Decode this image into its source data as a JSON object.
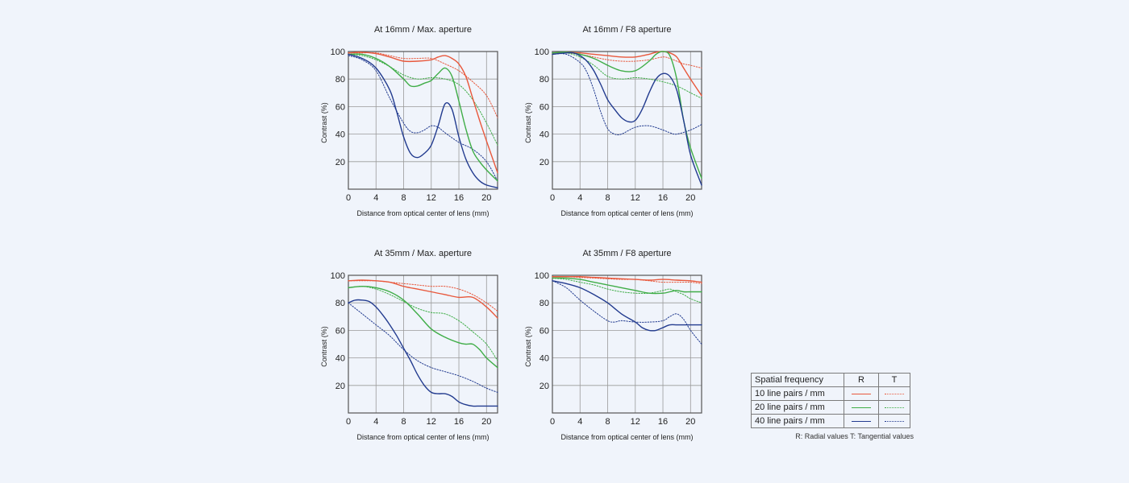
{
  "chart_data": [
    {
      "type": "line",
      "title": "At 16mm / Max. aperture",
      "xlabel": "Distance from optical center of lens (mm)",
      "ylabel": "Contrast (%)",
      "xlim": [
        0,
        21.6
      ],
      "ylim": [
        0,
        100
      ],
      "xticks": [
        "0",
        "4",
        "8",
        "12",
        "16",
        "20"
      ],
      "yticks": [
        "20",
        "40",
        "60",
        "80",
        "100"
      ],
      "grid": true,
      "series": [
        {
          "name": "10 line pairs / mm",
          "kind": "R",
          "x": [
            0,
            2,
            4,
            6,
            8,
            10,
            12,
            13,
            14,
            15,
            16,
            17,
            18,
            19,
            20,
            21.6
          ],
          "y": [
            99,
            99.5,
            98.5,
            96,
            93,
            93,
            94,
            96,
            97,
            95,
            91,
            82,
            66,
            50,
            35,
            12
          ]
        },
        {
          "name": "10 line pairs / mm",
          "kind": "T",
          "x": [
            0,
            2,
            4,
            6,
            8,
            10,
            12,
            14,
            16,
            18,
            20,
            21.6
          ],
          "y": [
            99,
            99,
            99,
            97,
            95,
            95,
            95,
            91,
            86,
            78,
            68,
            52
          ]
        },
        {
          "name": "20 line pairs / mm",
          "kind": "R",
          "x": [
            0,
            2,
            4,
            6,
            8,
            9,
            10,
            11,
            12,
            13,
            14,
            15,
            16,
            17,
            18,
            19,
            20,
            21.6
          ],
          "y": [
            98,
            98,
            95,
            89,
            80,
            75,
            75,
            77,
            79,
            84,
            88,
            82,
            64,
            44,
            28,
            20,
            14,
            6
          ]
        },
        {
          "name": "20 line pairs / mm",
          "kind": "T",
          "x": [
            0,
            2,
            4,
            6,
            8,
            10,
            12,
            14,
            16,
            18,
            20,
            21.6
          ],
          "y": [
            98,
            97,
            94,
            89,
            83,
            80,
            81,
            80,
            76,
            65,
            48,
            32
          ]
        },
        {
          "name": "40 line pairs / mm",
          "kind": "R",
          "x": [
            0,
            2,
            4,
            6,
            7,
            8,
            9,
            10,
            11,
            12,
            13,
            14,
            15,
            16,
            17,
            18,
            19,
            20,
            21.6
          ],
          "y": [
            98,
            95,
            88,
            72,
            56,
            38,
            26,
            23,
            26,
            32,
            46,
            62,
            58,
            38,
            22,
            12,
            6,
            3,
            1
          ]
        },
        {
          "name": "40 line pairs / mm",
          "kind": "T",
          "x": [
            0,
            2,
            4,
            6,
            8,
            9,
            10,
            11,
            12,
            13,
            14,
            16,
            18,
            20,
            21.6
          ],
          "y": [
            97,
            94,
            86,
            66,
            48,
            42,
            41,
            43,
            46,
            45,
            41,
            34,
            29,
            20,
            6
          ]
        }
      ]
    },
    {
      "type": "line",
      "title": "At 16mm / F8 aperture",
      "xlabel": "Distance from optical center of lens (mm)",
      "ylabel": "Contrast (%)",
      "xlim": [
        0,
        21.6
      ],
      "ylim": [
        0,
        100
      ],
      "xticks": [
        "0",
        "4",
        "8",
        "12",
        "16",
        "20"
      ],
      "yticks": [
        "20",
        "40",
        "60",
        "80",
        "100"
      ],
      "grid": true,
      "series": [
        {
          "name": "10 line pairs / mm",
          "kind": "R",
          "x": [
            0,
            2,
            4,
            6,
            8,
            10,
            12,
            14,
            15,
            16,
            17,
            18,
            19,
            20,
            21.6
          ],
          "y": [
            99,
            99.5,
            99,
            98,
            97,
            96,
            96,
            98,
            99.5,
            100,
            99,
            96,
            88,
            80,
            68
          ]
        },
        {
          "name": "10 line pairs / mm",
          "kind": "T",
          "x": [
            0,
            2,
            4,
            6,
            8,
            10,
            12,
            14,
            16,
            17,
            18,
            19,
            20,
            21.6
          ],
          "y": [
            99,
            99,
            98,
            96,
            94,
            93,
            93,
            94,
            96,
            95,
            93,
            91,
            90,
            88
          ]
        },
        {
          "name": "20 line pairs / mm",
          "kind": "R",
          "x": [
            0,
            2,
            4,
            6,
            8,
            10,
            12,
            14,
            15,
            16,
            17,
            18,
            19,
            20,
            21.6
          ],
          "y": [
            99,
            99.5,
            98,
            95,
            90,
            86,
            86,
            93,
            98,
            100,
            97,
            80,
            50,
            30,
            8
          ]
        },
        {
          "name": "20 line pairs / mm",
          "kind": "T",
          "x": [
            0,
            2,
            4,
            6,
            8,
            10,
            12,
            14,
            16,
            18,
            20,
            21.6
          ],
          "y": [
            99,
            99,
            96,
            90,
            82,
            80,
            81,
            80,
            78,
            75,
            70,
            66
          ]
        },
        {
          "name": "40 line pairs / mm",
          "kind": "R",
          "x": [
            0,
            2,
            3,
            4,
            5,
            6,
            7,
            8,
            9,
            10,
            11,
            12,
            13,
            14,
            15,
            16,
            17,
            18,
            19,
            20,
            21.6
          ],
          "y": [
            98,
            99,
            99,
            97,
            93,
            86,
            76,
            65,
            58,
            52,
            49,
            50,
            58,
            70,
            80,
            84,
            82,
            72,
            50,
            25,
            3
          ]
        },
        {
          "name": "40 line pairs / mm",
          "kind": "T",
          "x": [
            0,
            2,
            4,
            5,
            6,
            7,
            8,
            9,
            10,
            12,
            14,
            16,
            17,
            18,
            20,
            21.6
          ],
          "y": [
            98,
            98,
            92,
            85,
            72,
            56,
            44,
            40,
            40,
            45,
            46,
            43,
            41,
            40,
            43,
            47
          ]
        }
      ]
    },
    {
      "type": "line",
      "title": "At 35mm / Max. aperture",
      "xlabel": "Distance from optical center of lens (mm)",
      "ylabel": "Contrast (%)",
      "xlim": [
        0,
        21.6
      ],
      "ylim": [
        0,
        100
      ],
      "xticks": [
        "0",
        "4",
        "8",
        "12",
        "16",
        "20"
      ],
      "yticks": [
        "20",
        "40",
        "60",
        "80",
        "100"
      ],
      "grid": true,
      "series": [
        {
          "name": "10 line pairs / mm",
          "kind": "R",
          "x": [
            0,
            2,
            4,
            6,
            8,
            10,
            12,
            14,
            16,
            18,
            20,
            21.6
          ],
          "y": [
            96,
            96.5,
            96,
            95,
            92,
            90,
            88,
            86,
            84,
            84,
            77,
            69
          ]
        },
        {
          "name": "10 line pairs / mm",
          "kind": "T",
          "x": [
            0,
            2,
            4,
            6,
            8,
            10,
            12,
            14,
            16,
            18,
            20,
            21.6
          ],
          "y": [
            96,
            96,
            96,
            95,
            94,
            93,
            92,
            92,
            90,
            86,
            80,
            74
          ]
        },
        {
          "name": "20 line pairs / mm",
          "kind": "R",
          "x": [
            0,
            2,
            4,
            6,
            8,
            10,
            12,
            14,
            16,
            17,
            18,
            19,
            20,
            21.6
          ],
          "y": [
            91,
            92,
            91,
            88,
            82,
            72,
            61,
            55,
            51,
            50,
            50,
            46,
            40,
            33
          ]
        },
        {
          "name": "20 line pairs / mm",
          "kind": "T",
          "x": [
            0,
            2,
            4,
            6,
            8,
            10,
            12,
            14,
            16,
            18,
            20,
            21.6
          ],
          "y": [
            91,
            92,
            90,
            86,
            81,
            76,
            73,
            72,
            67,
            59,
            50,
            38
          ]
        },
        {
          "name": "40 line pairs / mm",
          "kind": "R",
          "x": [
            0,
            1,
            2,
            3,
            4,
            5,
            6,
            7,
            8,
            9,
            10,
            11,
            12,
            13,
            14,
            15,
            16,
            17,
            18,
            19,
            20,
            21.6
          ],
          "y": [
            80,
            82,
            82,
            81,
            77,
            71,
            64,
            56,
            47,
            38,
            28,
            20,
            15,
            14,
            14,
            12,
            8,
            6,
            5,
            5,
            5,
            5
          ]
        },
        {
          "name": "40 line pairs / mm",
          "kind": "T",
          "x": [
            0,
            2,
            4,
            6,
            8,
            10,
            12,
            14,
            16,
            18,
            20,
            21.6
          ],
          "y": [
            80,
            72,
            64,
            56,
            46,
            38,
            33,
            30,
            27,
            23,
            18,
            15
          ]
        }
      ]
    },
    {
      "type": "line",
      "title": "At 35mm / F8 aperture",
      "xlabel": "Distance from optical center of lens (mm)",
      "ylabel": "Contrast (%)",
      "xlim": [
        0,
        21.6
      ],
      "ylim": [
        0,
        100
      ],
      "xticks": [
        "0",
        "4",
        "8",
        "12",
        "16",
        "20"
      ],
      "yticks": [
        "20",
        "40",
        "60",
        "80",
        "100"
      ],
      "grid": true,
      "series": [
        {
          "name": "10 line pairs / mm",
          "kind": "R",
          "x": [
            0,
            2,
            4,
            6,
            8,
            10,
            12,
            14,
            16,
            18,
            20,
            21.6
          ],
          "y": [
            99,
            99,
            99,
            98.5,
            98,
            97.5,
            97,
            96.5,
            97,
            96.5,
            96,
            95
          ]
        },
        {
          "name": "10 line pairs / mm",
          "kind": "T",
          "x": [
            0,
            2,
            4,
            6,
            8,
            10,
            12,
            14,
            16,
            18,
            20,
            21.6
          ],
          "y": [
            99,
            99,
            98.5,
            98,
            97.5,
            97,
            97,
            96,
            95,
            95,
            95,
            94
          ]
        },
        {
          "name": "20 line pairs / mm",
          "kind": "R",
          "x": [
            0,
            2,
            4,
            6,
            8,
            10,
            12,
            14,
            16,
            17,
            18,
            19,
            20,
            21.6
          ],
          "y": [
            98,
            98,
            97,
            95,
            93,
            91,
            89,
            87,
            87,
            88,
            89,
            88,
            88,
            88
          ]
        },
        {
          "name": "20 line pairs / mm",
          "kind": "T",
          "x": [
            0,
            2,
            4,
            6,
            8,
            10,
            12,
            14,
            16,
            17,
            18,
            19,
            20,
            21.6
          ],
          "y": [
            98,
            97,
            95,
            93,
            90,
            88,
            87,
            87,
            89,
            90,
            88,
            86,
            83,
            80
          ]
        },
        {
          "name": "40 line pairs / mm",
          "kind": "R",
          "x": [
            0,
            2,
            4,
            6,
            8,
            10,
            12,
            13,
            14,
            15,
            16,
            17,
            18,
            19,
            20,
            21.6
          ],
          "y": [
            96,
            94,
            91,
            86,
            80,
            72,
            66,
            62,
            60,
            60,
            62,
            64,
            64,
            64,
            64,
            64
          ]
        },
        {
          "name": "40 line pairs / mm",
          "kind": "T",
          "x": [
            0,
            2,
            4,
            6,
            8,
            9,
            10,
            12,
            14,
            16,
            17,
            18,
            19,
            20,
            21.6
          ],
          "y": [
            96,
            91,
            82,
            74,
            67,
            66,
            67,
            66,
            66,
            67,
            70,
            72,
            68,
            60,
            50
          ]
        }
      ]
    }
  ],
  "colors": {
    "10 line pairs / mm": "#e8583c",
    "20 line pairs / mm": "#3fad47",
    "40 line pairs / mm": "#223b8f",
    "grid": "#9a9a9a",
    "frame": "#555555"
  },
  "legend": {
    "header": {
      "label": "Spatial frequency",
      "r": "R",
      "t": "T"
    },
    "rows": [
      {
        "label": "10 line pairs / mm"
      },
      {
        "label": "20 line pairs / mm"
      },
      {
        "label": "40 line pairs / mm"
      }
    ],
    "note": "R: Radial values  T: Tangential values"
  }
}
